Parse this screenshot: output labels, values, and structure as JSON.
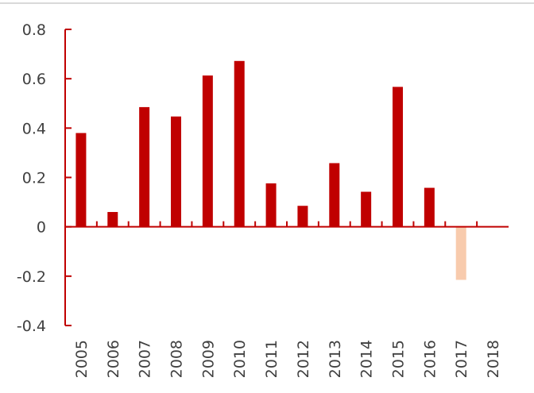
{
  "chart_data": {
    "type": "bar",
    "categories": [
      "2005",
      "2006",
      "2007",
      "2008",
      "2009",
      "2010",
      "2011",
      "2012",
      "2013",
      "2014",
      "2015",
      "2016",
      "2017",
      "2018"
    ],
    "values": [
      0.38,
      0.06,
      0.485,
      0.447,
      0.613,
      0.672,
      0.176,
      0.085,
      0.258,
      0.142,
      0.567,
      0.158,
      -0.215,
      0
    ],
    "ylim": [
      -0.4,
      0.8
    ],
    "yticks": [
      0.8,
      0.6,
      0.4,
      0.2,
      0,
      -0.2,
      -0.4
    ],
    "ytick_labels": [
      "0.8",
      "0.6",
      "0.4",
      "0.2",
      "0",
      "-0.2",
      "-0.4"
    ],
    "highlight_category": "2017",
    "grid": false,
    "legend": "none",
    "colors": {
      "bar": "#c00000",
      "highlight_bar": "#f8cbad",
      "axis": "#c00000",
      "text": "#404040"
    }
  }
}
